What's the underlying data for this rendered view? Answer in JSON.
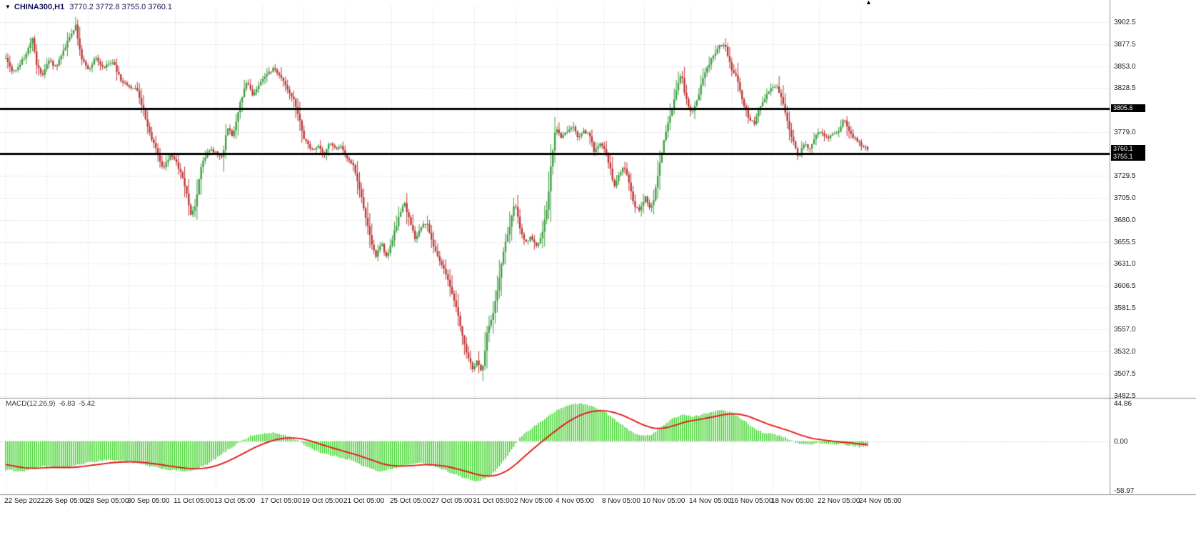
{
  "header": {
    "symbol": "CHINA300,H1",
    "ohlc": "3770.2 3772.8 3755.0 3760.1"
  },
  "chart_data": {
    "type": "candlestick",
    "symbol": "CHINA300",
    "timeframe": "H1",
    "open": 3770.2,
    "high": 3772.8,
    "low": 3755.0,
    "close": 3760.1,
    "ylim": [
      3482.5,
      3902.5
    ],
    "y_ticks": [
      3902.5,
      3877.5,
      3853.0,
      3828.5,
      3779.0,
      3729.5,
      3705.0,
      3680.0,
      3655.5,
      3631.0,
      3606.5,
      3581.5,
      3557.0,
      3532.0,
      3507.5,
      3482.5
    ],
    "hlines": [
      3805.6,
      3755.1
    ],
    "price_tags": [
      3805.6,
      3760.1,
      3755.1
    ],
    "bars": 420,
    "grid": true,
    "legend_position": "none",
    "price_anchors": [
      [
        8,
        3862
      ],
      [
        18,
        3846
      ],
      [
        28,
        3856
      ],
      [
        38,
        3868
      ],
      [
        45,
        3886
      ],
      [
        52,
        3852
      ],
      [
        60,
        3842
      ],
      [
        68,
        3860
      ],
      [
        78,
        3852
      ],
      [
        88,
        3868
      ],
      [
        98,
        3888
      ],
      [
        106,
        3898
      ],
      [
        114,
        3862
      ],
      [
        124,
        3850
      ],
      [
        134,
        3862
      ],
      [
        144,
        3852
      ],
      [
        158,
        3858
      ],
      [
        170,
        3836
      ],
      [
        182,
        3830
      ],
      [
        192,
        3826
      ],
      [
        200,
        3806
      ],
      [
        210,
        3776
      ],
      [
        220,
        3756
      ],
      [
        228,
        3736
      ],
      [
        238,
        3752
      ],
      [
        246,
        3746
      ],
      [
        254,
        3732
      ],
      [
        260,
        3716
      ],
      [
        267,
        3684
      ],
      [
        274,
        3698
      ],
      [
        282,
        3742
      ],
      [
        292,
        3760
      ],
      [
        302,
        3756
      ],
      [
        312,
        3750
      ],
      [
        318,
        3786
      ],
      [
        326,
        3772
      ],
      [
        336,
        3812
      ],
      [
        346,
        3836
      ],
      [
        354,
        3820
      ],
      [
        362,
        3830
      ],
      [
        372,
        3842
      ],
      [
        382,
        3850
      ],
      [
        392,
        3844
      ],
      [
        400,
        3830
      ],
      [
        410,
        3818
      ],
      [
        418,
        3798
      ],
      [
        426,
        3772
      ],
      [
        436,
        3758
      ],
      [
        446,
        3762
      ],
      [
        454,
        3754
      ],
      [
        462,
        3768
      ],
      [
        470,
        3760
      ],
      [
        478,
        3762
      ],
      [
        486,
        3750
      ],
      [
        494,
        3744
      ],
      [
        502,
        3720
      ],
      [
        510,
        3692
      ],
      [
        518,
        3662
      ],
      [
        526,
        3638
      ],
      [
        534,
        3654
      ],
      [
        542,
        3636
      ],
      [
        550,
        3660
      ],
      [
        558,
        3682
      ],
      [
        566,
        3700
      ],
      [
        574,
        3678
      ],
      [
        582,
        3658
      ],
      [
        590,
        3672
      ],
      [
        598,
        3678
      ],
      [
        606,
        3652
      ],
      [
        614,
        3638
      ],
      [
        622,
        3624
      ],
      [
        630,
        3606
      ],
      [
        638,
        3584
      ],
      [
        646,
        3556
      ],
      [
        654,
        3530
      ],
      [
        662,
        3512
      ],
      [
        668,
        3522
      ],
      [
        675,
        3506
      ],
      [
        682,
        3554
      ],
      [
        690,
        3574
      ],
      [
        698,
        3608
      ],
      [
        706,
        3648
      ],
      [
        714,
        3674
      ],
      [
        721,
        3702
      ],
      [
        728,
        3670
      ],
      [
        736,
        3654
      ],
      [
        744,
        3662
      ],
      [
        752,
        3648
      ],
      [
        760,
        3668
      ],
      [
        766,
        3692
      ],
      [
        772,
        3744
      ],
      [
        778,
        3784
      ],
      [
        786,
        3772
      ],
      [
        794,
        3780
      ],
      [
        802,
        3786
      ],
      [
        810,
        3772
      ],
      [
        818,
        3780
      ],
      [
        826,
        3776
      ],
      [
        832,
        3756
      ],
      [
        840,
        3768
      ],
      [
        848,
        3758
      ],
      [
        854,
        3740
      ],
      [
        860,
        3716
      ],
      [
        866,
        3730
      ],
      [
        874,
        3742
      ],
      [
        882,
        3720
      ],
      [
        888,
        3694
      ],
      [
        896,
        3692
      ],
      [
        904,
        3706
      ],
      [
        910,
        3694
      ],
      [
        916,
        3704
      ],
      [
        924,
        3744
      ],
      [
        932,
        3778
      ],
      [
        940,
        3802
      ],
      [
        948,
        3830
      ],
      [
        954,
        3846
      ],
      [
        960,
        3818
      ],
      [
        968,
        3800
      ],
      [
        976,
        3814
      ],
      [
        984,
        3838
      ],
      [
        992,
        3854
      ],
      [
        1000,
        3866
      ],
      [
        1008,
        3878
      ],
      [
        1016,
        3874
      ],
      [
        1024,
        3850
      ],
      [
        1032,
        3842
      ],
      [
        1040,
        3814
      ],
      [
        1048,
        3796
      ],
      [
        1056,
        3788
      ],
      [
        1064,
        3806
      ],
      [
        1072,
        3818
      ],
      [
        1080,
        3828
      ],
      [
        1088,
        3832
      ],
      [
        1096,
        3812
      ],
      [
        1104,
        3786
      ],
      [
        1112,
        3766
      ],
      [
        1118,
        3750
      ],
      [
        1126,
        3766
      ],
      [
        1134,
        3758
      ],
      [
        1142,
        3774
      ],
      [
        1150,
        3780
      ],
      [
        1158,
        3772
      ],
      [
        1166,
        3778
      ],
      [
        1174,
        3780
      ],
      [
        1182,
        3794
      ],
      [
        1190,
        3778
      ],
      [
        1198,
        3772
      ],
      [
        1206,
        3764
      ],
      [
        1215,
        3760
      ]
    ],
    "x_labels": [
      [
        "22 Sep 2022",
        8
      ],
      [
        "26 Sep 05:00",
        65
      ],
      [
        "28 Sep 05:00",
        123
      ],
      [
        "30 Sep 05:00",
        180
      ],
      [
        "11 Oct 05:00",
        245
      ],
      [
        "13 Oct 05:00",
        302
      ],
      [
        "17 Oct 05:00",
        367
      ],
      [
        "19 Oct 05:00",
        425
      ],
      [
        "21 Oct 05:00",
        483
      ],
      [
        "25 Oct 05:00",
        548
      ],
      [
        "27 Oct 05:00",
        606
      ],
      [
        "31 Oct 05:00",
        664
      ],
      [
        "2 Nov 05:00",
        722
      ],
      [
        "4 Nov 05:00",
        780
      ],
      [
        "8 Nov 05:00",
        845
      ],
      [
        "10 Nov 05:00",
        902
      ],
      [
        "14 Nov 05:00",
        967
      ],
      [
        "16 Nov 05:00",
        1025
      ],
      [
        "18 Nov 05:00",
        1082
      ],
      [
        "22 Nov 05:00",
        1147
      ],
      [
        "24 Nov 05:00",
        1205
      ]
    ],
    "macd": {
      "label": "MACD(12,26,9)",
      "value_text": "-6.83",
      "signal_text": "-5.42",
      "value": -6.83,
      "signal": -5.42,
      "ticks": [
        44.86,
        0.0,
        -58.97
      ],
      "ylim": [
        -58.97,
        44.86
      ],
      "anchors": [
        [
          8,
          -34
        ],
        [
          30,
          -36
        ],
        [
          60,
          -30
        ],
        [
          90,
          -32
        ],
        [
          120,
          -26
        ],
        [
          150,
          -22
        ],
        [
          180,
          -24
        ],
        [
          210,
          -30
        ],
        [
          235,
          -34
        ],
        [
          265,
          -36
        ],
        [
          290,
          -28
        ],
        [
          310,
          -16
        ],
        [
          330,
          -4
        ],
        [
          350,
          6
        ],
        [
          368,
          9
        ],
        [
          385,
          10
        ],
        [
          400,
          7
        ],
        [
          415,
          2
        ],
        [
          430,
          -6
        ],
        [
          450,
          -14
        ],
        [
          470,
          -18
        ],
        [
          490,
          -22
        ],
        [
          510,
          -30
        ],
        [
          530,
          -36
        ],
        [
          550,
          -33
        ],
        [
          570,
          -28
        ],
        [
          590,
          -26
        ],
        [
          610,
          -30
        ],
        [
          630,
          -37
        ],
        [
          650,
          -44
        ],
        [
          668,
          -48
        ],
        [
          685,
          -43
        ],
        [
          700,
          -30
        ],
        [
          715,
          -12
        ],
        [
          730,
          6
        ],
        [
          745,
          16
        ],
        [
          760,
          25
        ],
        [
          775,
          34
        ],
        [
          790,
          41
        ],
        [
          805,
          45
        ],
        [
          820,
          44
        ],
        [
          835,
          40
        ],
        [
          850,
          33
        ],
        [
          862,
          25
        ],
        [
          875,
          17
        ],
        [
          888,
          10
        ],
        [
          900,
          6
        ],
        [
          912,
          8
        ],
        [
          925,
          16
        ],
        [
          940,
          26
        ],
        [
          955,
          32
        ],
        [
          970,
          29
        ],
        [
          985,
          32
        ],
        [
          1000,
          36
        ],
        [
          1012,
          38
        ],
        [
          1025,
          34
        ],
        [
          1040,
          26
        ],
        [
          1055,
          16
        ],
        [
          1070,
          10
        ],
        [
          1085,
          8
        ],
        [
          1100,
          4
        ],
        [
          1115,
          -2
        ],
        [
          1130,
          -4
        ],
        [
          1145,
          -2
        ],
        [
          1160,
          -4
        ],
        [
          1175,
          -3
        ],
        [
          1190,
          -5
        ],
        [
          1205,
          -6.8
        ],
        [
          1215,
          -6.8
        ]
      ]
    },
    "colors": {
      "up": "#3f9e43",
      "down": "#bf3535",
      "histogram": "#3fd32a",
      "signal": "#e41a1a",
      "grid": "#d6d6d6",
      "hline": "#000000",
      "separator": "#8f8f8f",
      "tag_bg": "#000000",
      "tag_text": "#ffffff"
    }
  }
}
